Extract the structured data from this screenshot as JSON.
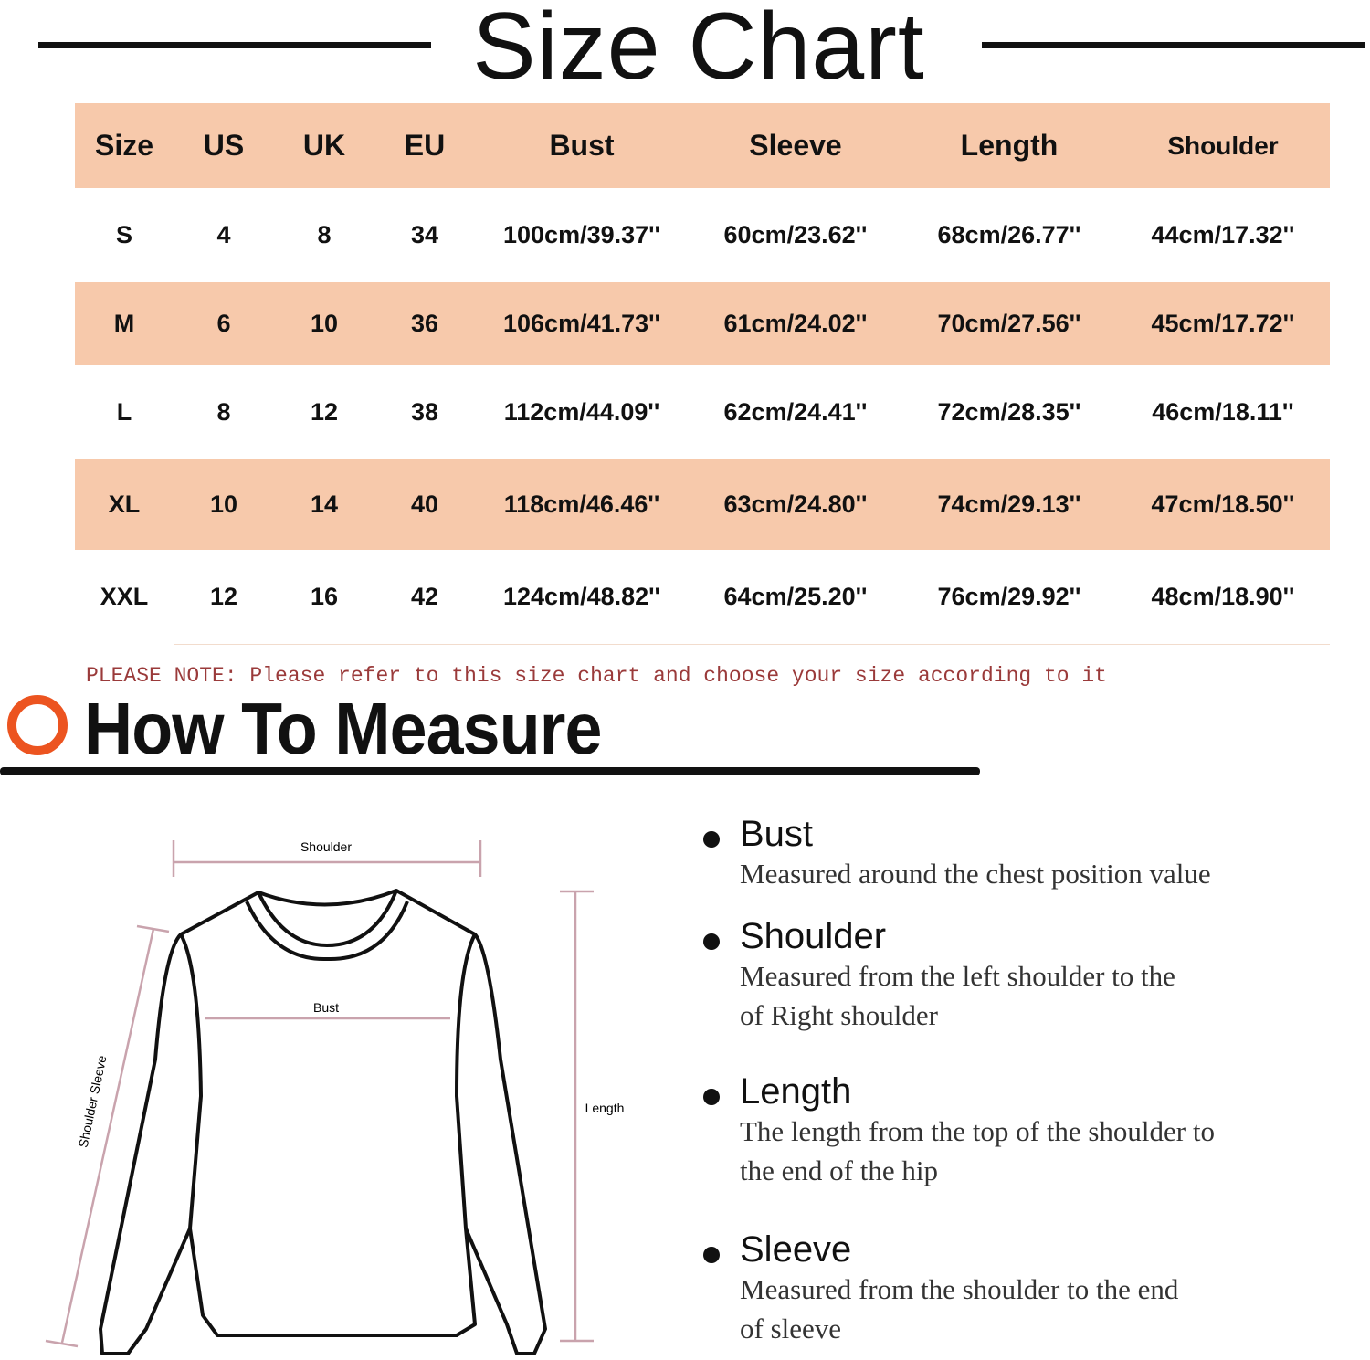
{
  "title": "Size Chart",
  "table": {
    "headers": [
      "Size",
      "US",
      "UK",
      "EU",
      "Bust",
      "Sleeve",
      "Length",
      "Shoulder"
    ],
    "rows": [
      [
        "S",
        "4",
        "8",
        "34",
        "100cm/39.37''",
        "60cm/23.62''",
        "68cm/26.77''",
        "44cm/17.32''"
      ],
      [
        "M",
        "6",
        "10",
        "36",
        "106cm/41.73''",
        "61cm/24.02''",
        "70cm/27.56''",
        "45cm/17.72''"
      ],
      [
        "L",
        "8",
        "12",
        "38",
        "112cm/44.09''",
        "62cm/24.41''",
        "72cm/28.35''",
        "46cm/18.11''"
      ],
      [
        "XL",
        "10",
        "14",
        "40",
        "118cm/46.46''",
        "63cm/24.80''",
        "74cm/29.13''",
        "47cm/18.50''"
      ],
      [
        "XXL",
        "12",
        "16",
        "42",
        "124cm/48.82''",
        "64cm/25.20''",
        "76cm/29.92''",
        "48cm/18.90''"
      ]
    ]
  },
  "colors": {
    "header_fill": "#f7c9ab",
    "accent_ring": "#ec5420",
    "note": "#9a3a3a",
    "measure_line": "#c9a3ad"
  },
  "note": "PLEASE NOTE: Please refer to this size chart and choose your size according to it",
  "how_to_measure": "How To Measure",
  "diagram_labels": {
    "shoulder": "Shoulder",
    "bust": "Bust",
    "length": "Length",
    "sleeve": "Shoulder Sleeve"
  },
  "instructions": [
    {
      "title": "Bust",
      "lines": [
        "Measured around the chest position value"
      ]
    },
    {
      "title": "Shoulder",
      "lines": [
        "Measured from the left shoulder to the",
        "of Right shoulder"
      ]
    },
    {
      "title": "Length",
      "lines": [
        "The length from the top of the shoulder to",
        "the end of the hip"
      ]
    },
    {
      "title": "Sleeve",
      "lines": [
        "Measured from the shoulder to the end",
        "of sleeve"
      ]
    }
  ]
}
